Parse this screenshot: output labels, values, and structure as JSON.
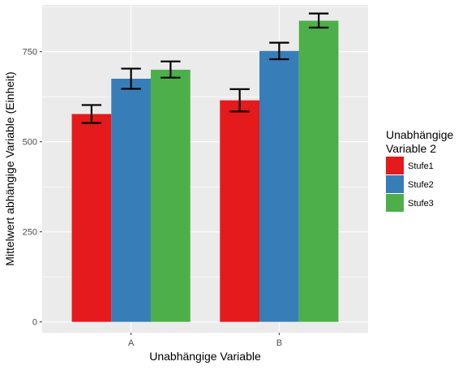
{
  "chart_data": {
    "type": "bar",
    "xlabel": "Unabhängige Variable",
    "ylabel": "Mittelwert abhängige Variable (Einheit)",
    "categories": [
      "A",
      "B"
    ],
    "ylim": [
      -30,
      880
    ],
    "yticks": [
      0,
      250,
      500,
      750
    ],
    "grid": true,
    "legend": {
      "title_lines": [
        "Unabhängige",
        "Variable 2"
      ],
      "placement": "right"
    },
    "series": [
      {
        "name": "Stufe1",
        "color": "#e41a1c",
        "values": [
          577,
          615
        ],
        "error_low": [
          552,
          584
        ],
        "error_high": [
          602,
          646
        ]
      },
      {
        "name": "Stufe2",
        "color": "#377eb8",
        "values": [
          675,
          752
        ],
        "error_low": [
          647,
          729
        ],
        "error_high": [
          703,
          775
        ]
      },
      {
        "name": "Stufe3",
        "color": "#4daf4a",
        "values": [
          700,
          836
        ],
        "error_low": [
          678,
          817
        ],
        "error_high": [
          723,
          856
        ]
      }
    ]
  }
}
